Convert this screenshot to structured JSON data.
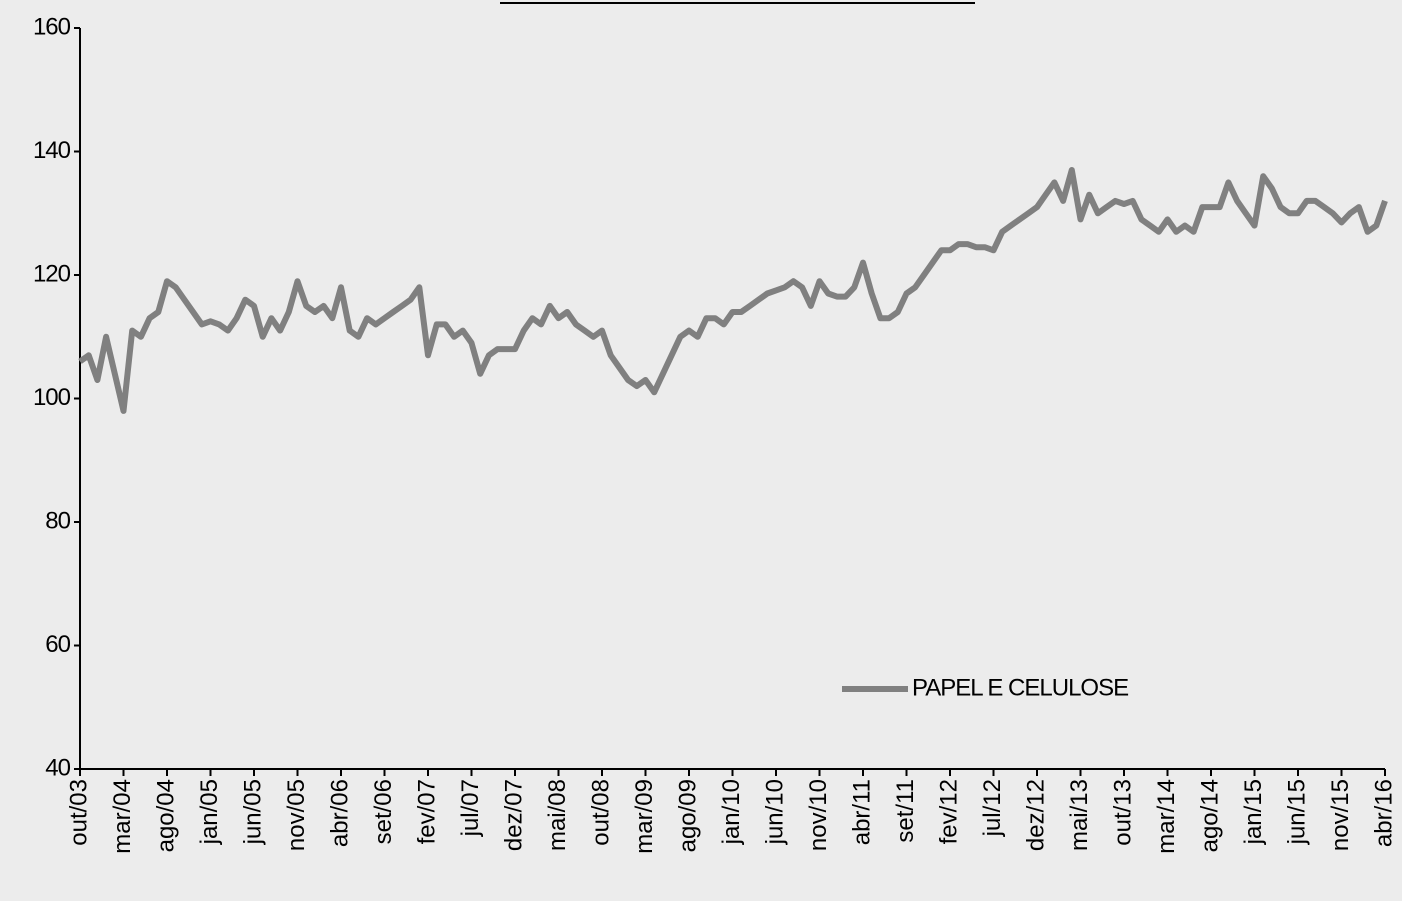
{
  "chart_data": {
    "type": "line",
    "categories": [
      "out/03",
      null,
      null,
      null,
      null,
      "mar/04",
      null,
      null,
      null,
      null,
      "ago/04",
      null,
      null,
      null,
      null,
      "jan/05",
      null,
      null,
      null,
      null,
      "jun/05",
      null,
      null,
      null,
      null,
      "nov/05",
      null,
      null,
      null,
      null,
      "abr/06",
      null,
      null,
      null,
      null,
      "set/06",
      null,
      null,
      null,
      null,
      "fev/07",
      null,
      null,
      null,
      null,
      "jul/07",
      null,
      null,
      null,
      null,
      "dez/07",
      null,
      null,
      null,
      null,
      "mai/08",
      null,
      null,
      null,
      null,
      "out/08",
      null,
      null,
      null,
      null,
      "mar/09",
      null,
      null,
      null,
      null,
      "ago/09",
      null,
      null,
      null,
      null,
      "jan/10",
      null,
      null,
      null,
      null,
      "jun/10",
      null,
      null,
      null,
      null,
      "nov/10",
      null,
      null,
      null,
      null,
      "abr/11",
      null,
      null,
      null,
      null,
      "set/11",
      null,
      null,
      null,
      null,
      "fev/12",
      null,
      null,
      null,
      null,
      "jul/12",
      null,
      null,
      null,
      null,
      "dez/12",
      null,
      null,
      null,
      null,
      "mai/13",
      null,
      null,
      null,
      null,
      "out/13",
      null,
      null,
      null,
      null,
      "mar/14",
      null,
      null,
      null,
      null,
      "ago/14",
      null,
      null,
      null,
      null,
      "jan/15",
      null,
      null,
      null,
      null,
      "jun/15",
      null,
      null,
      null,
      null,
      "nov/15",
      null,
      null,
      null,
      null,
      "abr/16"
    ],
    "series": [
      {
        "name": "PAPEL E CELULOSE",
        "color": "#808080",
        "values": [
          106,
          107,
          103,
          110,
          104,
          98,
          111,
          110,
          113,
          114,
          119,
          118,
          116,
          114,
          112,
          112.5,
          112,
          111,
          113,
          116,
          115,
          110,
          113,
          111,
          114,
          119,
          115,
          114,
          115,
          113,
          118,
          111,
          110,
          113,
          112,
          113,
          114,
          115,
          116,
          118,
          107,
          112,
          112,
          110,
          111,
          109,
          104,
          107,
          108,
          108,
          108,
          111,
          113,
          112,
          115,
          113,
          114,
          112,
          111,
          110,
          111,
          107,
          105,
          103,
          102,
          103,
          101,
          104,
          107,
          110,
          111,
          110,
          113,
          113,
          112,
          114,
          114,
          115,
          116,
          117,
          117.5,
          118,
          119,
          118,
          115,
          119,
          117,
          116.5,
          116.5,
          118,
          122,
          117,
          113,
          113,
          114,
          117,
          118,
          120,
          122,
          124,
          124,
          125,
          125,
          124.5,
          124.5,
          124,
          127,
          128,
          129,
          130,
          131,
          133,
          135,
          132,
          137,
          129,
          133,
          130,
          131,
          132,
          131.5,
          132,
          129,
          128,
          127,
          129,
          127,
          128,
          127,
          131,
          131,
          131,
          135,
          132,
          130,
          128,
          136,
          134,
          131,
          130,
          130,
          132,
          132,
          131,
          130,
          128.5,
          130,
          131,
          127,
          128,
          132
        ]
      }
    ],
    "ylim": [
      40,
      160
    ],
    "yticks": [
      40,
      60,
      80,
      100,
      120,
      140,
      160
    ],
    "grid": false,
    "legend": "lower right"
  }
}
